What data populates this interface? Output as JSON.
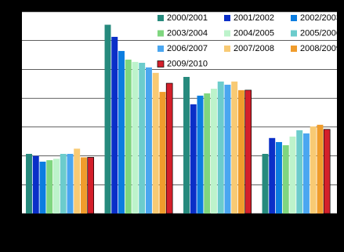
{
  "chart_data": {
    "type": "bar",
    "categories": [
      null,
      null,
      null,
      null
    ],
    "series": [
      {
        "name": "2000/2001",
        "color": "#268a7d",
        "values": [
          2.07,
          6.55,
          4.74,
          2.07
        ]
      },
      {
        "name": "2001/2002",
        "color": "#0a2fc8",
        "values": [
          2.0,
          6.13,
          3.79,
          2.62
        ]
      },
      {
        "name": "2002/2003",
        "color": "#0b7de0",
        "values": [
          1.8,
          5.64,
          4.09,
          2.48
        ]
      },
      {
        "name": "2003/2004",
        "color": "#7fd67f",
        "values": [
          1.85,
          5.34,
          4.17,
          2.37
        ]
      },
      {
        "name": "2004/2005",
        "color": "#bdf3cb",
        "values": [
          1.9,
          5.26,
          4.33,
          2.67
        ]
      },
      {
        "name": "2005/2006",
        "color": "#6ccccc",
        "values": [
          2.07,
          5.23,
          4.58,
          2.89
        ]
      },
      {
        "name": "2006/2007",
        "color": "#4aa6f0",
        "values": [
          2.07,
          5.07,
          4.47,
          2.78
        ]
      },
      {
        "name": "2007/2008",
        "color": "#f8ca74",
        "values": [
          2.25,
          4.88,
          4.58,
          3.02
        ]
      },
      {
        "name": "2008/2009",
        "color": "#f09c2c",
        "values": [
          1.95,
          4.22,
          4.28,
          3.08
        ]
      },
      {
        "name": "2009/2010",
        "color": "#d41f2b",
        "values": [
          1.95,
          4.52,
          4.28,
          2.92
        ]
      }
    ],
    "ylim": [
      0,
      7
    ],
    "yticks": [
      0,
      1,
      2,
      3,
      4,
      5,
      6,
      7
    ],
    "grid": true
  }
}
